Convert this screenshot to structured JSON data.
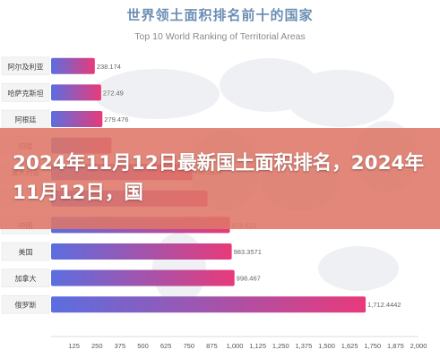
{
  "header": {
    "title_cn": "世界领土面积排名前十的国家",
    "title_en": "Top 10 World Ranking of Territorial Areas"
  },
  "overlay": {
    "headline": "2024年11月12日最新国土面积排名，2024年11月12日，国"
  },
  "colors": {
    "bar_start": "#5b6ee0",
    "bar_end": "#e83a7a",
    "title": "#6b8fb5",
    "overlay": "#de7668"
  },
  "chart_data": {
    "type": "bar",
    "orientation": "horizontal",
    "title": "世界领土面积排名前十的国家",
    "subtitle": "Top 10 World Ranking of Territorial Areas",
    "categories": [
      "阿尔及利亚",
      "哈萨克斯坦",
      "阿根廷",
      "印度",
      "澳大利亚",
      "巴西",
      "中国",
      "美国",
      "加拿大",
      "俄罗斯"
    ],
    "category_labels_visible": [
      true,
      true,
      true,
      true,
      true,
      false,
      true,
      true,
      true,
      true
    ],
    "values": [
      238.174,
      272.49,
      279.476,
      328.7,
      769.2024,
      851.5,
      973.423,
      983.3571,
      998.467,
      1712.4442
    ],
    "value_labels": [
      "238.174",
      "272.49",
      "279.476",
      "",
      "769.2024",
      "",
      "973.423",
      "983.3571",
      "998.467",
      "1,712.4442"
    ],
    "xlim": [
      0,
      2000
    ],
    "xticks": [
      125,
      250,
      375,
      500,
      625,
      750,
      875,
      1000,
      1125,
      1250,
      1375,
      1500,
      1625,
      1750,
      1875,
      2000
    ],
    "xtick_labels": [
      "125",
      "250",
      "375",
      "500",
      "625",
      "750",
      "875",
      "1,000",
      "1,125",
      "1,250",
      "1,375",
      "1,500",
      "1,625",
      "1,750",
      "1,875",
      "2,000"
    ],
    "grid": false,
    "legend": "none"
  }
}
